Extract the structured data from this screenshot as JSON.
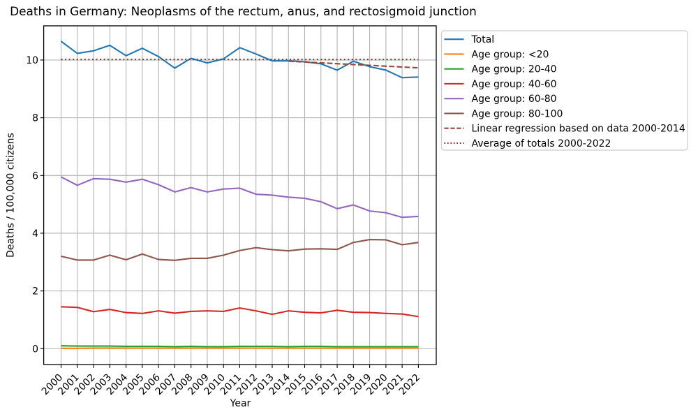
{
  "chart_data": {
    "type": "line",
    "title": "Deaths in Germany: Neoplasms of the rectum, anus, and rectosigmoid junction",
    "xlabel": "Year",
    "ylabel": "Deaths / 100,000 citizens",
    "x": [
      2000,
      2001,
      2002,
      2003,
      2004,
      2005,
      2006,
      2007,
      2008,
      2009,
      2010,
      2011,
      2012,
      2013,
      2014,
      2015,
      2016,
      2017,
      2018,
      2019,
      2020,
      2021,
      2022
    ],
    "x_tick_labels": [
      "2000",
      "2001",
      "2002",
      "2003",
      "2004",
      "2005",
      "2006",
      "2007",
      "2008",
      "2009",
      "2010",
      "2011",
      "2012",
      "2013",
      "2014",
      "2015",
      "2016",
      "2017",
      "2018",
      "2019",
      "2020",
      "2021",
      "2022"
    ],
    "y_ticks": [
      0,
      2,
      4,
      6,
      8,
      10
    ],
    "xlim": [
      1998.93,
      2023.1
    ],
    "ylim": [
      -0.55,
      11.185
    ],
    "grid": true,
    "grid_color": "#b0b0b0",
    "background": "#ffffff",
    "legend_position": "outside upper right",
    "series": [
      {
        "name": "Total",
        "color": "#1f77b4",
        "style": "solid",
        "values": [
          10.65,
          10.23,
          10.32,
          10.51,
          10.15,
          10.41,
          10.12,
          9.72,
          10.06,
          9.9,
          10.04,
          10.43,
          10.21,
          9.97,
          9.97,
          9.94,
          9.87,
          9.65,
          9.96,
          9.77,
          9.65,
          9.39,
          9.41
        ]
      },
      {
        "name": "Age group: <20",
        "color": "#ff7f0e",
        "style": "solid",
        "values": [
          0.01,
          0.01,
          0.02,
          0.02,
          0.02,
          0.02,
          0.02,
          0.02,
          0.02,
          0.02,
          0.02,
          0.02,
          0.02,
          0.02,
          0.02,
          0.02,
          0.02,
          0.02,
          0.02,
          0.02,
          0.02,
          0.02,
          0.02
        ]
      },
      {
        "name": "Age group: 20-40",
        "color": "#2ca02c",
        "style": "solid",
        "values": [
          0.1,
          0.09,
          0.09,
          0.09,
          0.08,
          0.08,
          0.08,
          0.07,
          0.08,
          0.07,
          0.07,
          0.08,
          0.08,
          0.08,
          0.07,
          0.08,
          0.08,
          0.07,
          0.07,
          0.07,
          0.07,
          0.07,
          0.07
        ]
      },
      {
        "name": "Age group: 40-60",
        "color": "#d62728",
        "style": "solid",
        "values": [
          1.45,
          1.43,
          1.28,
          1.36,
          1.25,
          1.22,
          1.31,
          1.23,
          1.29,
          1.31,
          1.29,
          1.41,
          1.31,
          1.19,
          1.31,
          1.26,
          1.24,
          1.33,
          1.26,
          1.25,
          1.22,
          1.2,
          1.11
        ]
      },
      {
        "name": "Age group: 60-80",
        "color": "#9467bd",
        "style": "solid",
        "values": [
          5.95,
          5.66,
          5.89,
          5.87,
          5.77,
          5.87,
          5.68,
          5.43,
          5.58,
          5.43,
          5.53,
          5.56,
          5.35,
          5.32,
          5.25,
          5.21,
          5.09,
          4.85,
          4.98,
          4.77,
          4.71,
          4.55,
          4.58
        ]
      },
      {
        "name": "Age group: 80-100",
        "color": "#8c564b",
        "style": "solid",
        "values": [
          3.2,
          3.07,
          3.07,
          3.24,
          3.08,
          3.28,
          3.09,
          3.06,
          3.13,
          3.13,
          3.24,
          3.4,
          3.5,
          3.43,
          3.39,
          3.45,
          3.46,
          3.44,
          3.68,
          3.78,
          3.77,
          3.6,
          3.68
        ]
      }
    ],
    "regression_line": {
      "name": "Linear regression based on data 2000-2014",
      "color": "#96453a",
      "style": "dashed",
      "x": [
        2014,
        2022
      ],
      "values": [
        9.96,
        9.73
      ]
    },
    "average_line": {
      "name": "Average of totals 2000-2022",
      "color": "#8e352a",
      "style": "dotted",
      "x": [
        2000,
        2022
      ],
      "value": 10.02
    },
    "legend_entries": [
      "Total",
      "Age group: <20",
      "Age group: 20-40",
      "Age group: 40-60",
      "Age group: 60-80",
      "Age group: 80-100",
      "Linear regression based on data 2000-2014",
      "Average of totals 2000-2022"
    ]
  }
}
